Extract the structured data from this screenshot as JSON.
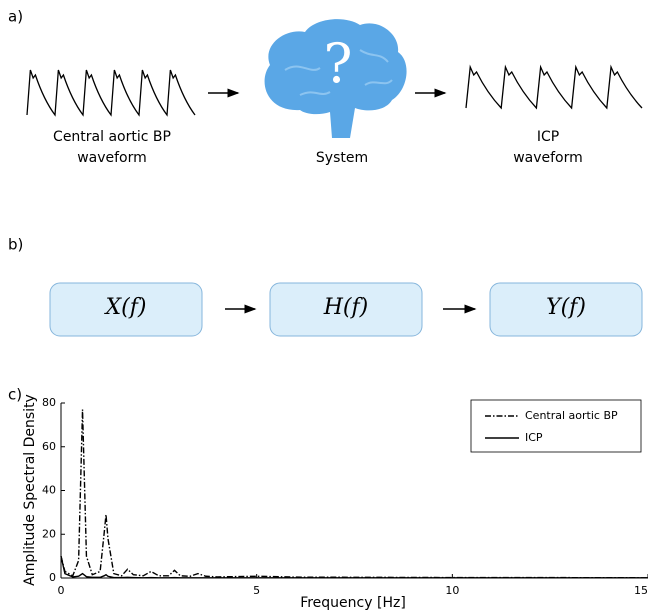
{
  "panel_a": {
    "label": "a)",
    "input_label": [
      "Central aortic BP",
      "waveform"
    ],
    "system_label": "System",
    "output_label": [
      "ICP",
      "waveform"
    ]
  },
  "panel_b": {
    "label": "b)",
    "boxes": [
      "X(f)",
      "H(f)",
      "Y(f)"
    ]
  },
  "chart_data": {
    "type": "line",
    "panel_label": "c)",
    "xlabel": "Frequency [Hz]",
    "ylabel": "Amplitude Spectral Density",
    "x": [
      0,
      0.1,
      0.3,
      0.45,
      0.55,
      0.65,
      0.8,
      1.0,
      1.1,
      1.15,
      1.2,
      1.35,
      1.55,
      1.7,
      1.85,
      2.1,
      2.3,
      2.5,
      2.75,
      2.9,
      3.05,
      3.3,
      3.5,
      3.7,
      4,
      5,
      6,
      8,
      10,
      12,
      15
    ],
    "series": [
      {
        "name": "Central aortic BP",
        "color": "#000000",
        "dash": "dashdot",
        "values": [
          10,
          3,
          1,
          8,
          77,
          10,
          1.5,
          3,
          20,
          29,
          18,
          2,
          1,
          4,
          1.5,
          1,
          3,
          1,
          1,
          3.5,
          1,
          0.8,
          2,
          0.8,
          0.5,
          0.8,
          0.4,
          0.3,
          0.2,
          0.2,
          0.1
        ]
      },
      {
        "name": "ICP",
        "color": "#000000",
        "dash": "solid",
        "values": [
          10,
          2,
          0.5,
          0.8,
          2,
          0.6,
          0.3,
          0.3,
          1,
          1.5,
          0.8,
          0.2,
          0.2,
          0.3,
          0.2,
          0.1,
          0.2,
          0.1,
          0.1,
          0.2,
          0.1,
          0.1,
          0.1,
          0.1,
          0.1,
          0.1,
          0.1,
          0.1,
          0.1,
          0.1,
          0.1
        ]
      }
    ],
    "xlim": [
      0,
      15
    ],
    "xticks": [
      0,
      5,
      10,
      15
    ],
    "ylim": [
      0,
      80
    ],
    "yticks": [
      0,
      20,
      40,
      60,
      80
    ],
    "legend": "upper right"
  }
}
